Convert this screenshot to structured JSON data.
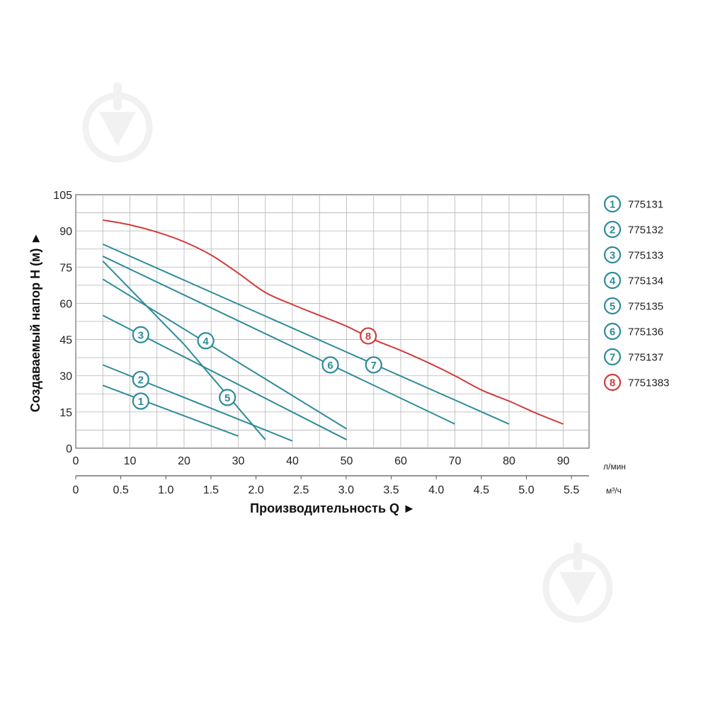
{
  "chart_data": {
    "type": "line",
    "x_unit_primary": "л/мин",
    "x_unit_secondary": "м³/ч",
    "xlabel": "Производительность Q ►",
    "ylabel": "Создаваемый напор H (м) ►",
    "ylim": [
      0,
      105
    ],
    "xlim": [
      0,
      95
    ],
    "grid": true,
    "legend_position": "right",
    "y_ticks": [
      "0",
      "15",
      "30",
      "45",
      "60",
      "75",
      "90",
      "105"
    ],
    "y_tick_values": [
      0,
      15,
      30,
      45,
      60,
      75,
      90,
      105
    ],
    "x_ticks_primary": [
      "0",
      "10",
      "20",
      "30",
      "40",
      "50",
      "60",
      "70",
      "80",
      "90"
    ],
    "x_ticks_primary_values": [
      0,
      10,
      20,
      30,
      40,
      50,
      60,
      70,
      80,
      90
    ],
    "x_ticks_secondary": [
      "0",
      "0.5",
      "1.0",
      "1.5",
      "2.0",
      "2.5",
      "3.0",
      "3.5",
      "4.0",
      "4.5",
      "5.0",
      "5.5"
    ],
    "x_ticks_secondary_values": [
      0,
      0.5,
      1.0,
      1.5,
      2.0,
      2.5,
      3.0,
      3.5,
      4.0,
      4.5,
      5.0,
      5.5
    ],
    "series": [
      {
        "id": "1",
        "name": "775131",
        "color": "#2e8b9a",
        "points": [
          [
            5,
            26
          ],
          [
            30,
            5
          ]
        ],
        "marker_at": [
          12,
          19.5
        ]
      },
      {
        "id": "2",
        "name": "775132",
        "color": "#2e8b9a",
        "points": [
          [
            5,
            34.5
          ],
          [
            40,
            3
          ]
        ],
        "marker_at": [
          12,
          28.5
        ]
      },
      {
        "id": "3",
        "name": "775133",
        "color": "#2e8b9a",
        "points": [
          [
            5,
            55
          ],
          [
            50,
            3.5
          ]
        ],
        "marker_at": [
          12,
          47
        ]
      },
      {
        "id": "4",
        "name": "775134",
        "color": "#2e8b9a",
        "points": [
          [
            5,
            70
          ],
          [
            50,
            8
          ]
        ],
        "marker_at": [
          24,
          44.5
        ]
      },
      {
        "id": "5",
        "name": "775135",
        "color": "#2e8b9a",
        "points": [
          [
            5,
            77.5
          ],
          [
            20,
            43
          ],
          [
            35,
            3.5
          ]
        ],
        "marker_at": [
          28,
          21
        ]
      },
      {
        "id": "6",
        "name": "775136",
        "color": "#2e8b9a",
        "points": [
          [
            5,
            79.5
          ],
          [
            70,
            10
          ]
        ],
        "marker_at": [
          47,
          34.5
        ]
      },
      {
        "id": "7",
        "name": "775137",
        "color": "#2e8b9a",
        "points": [
          [
            5,
            84.5
          ],
          [
            80,
            10
          ]
        ],
        "marker_at": [
          55,
          34.5
        ]
      },
      {
        "id": "8",
        "name": "7751383",
        "color": "#d13b3b",
        "points": [
          [
            5,
            94.5
          ],
          [
            10,
            92.5
          ],
          [
            15,
            89.5
          ],
          [
            20,
            85.5
          ],
          [
            25,
            80
          ],
          [
            30,
            72.5
          ],
          [
            35,
            64.5
          ],
          [
            40,
            59.5
          ],
          [
            45,
            55
          ],
          [
            50,
            50.5
          ],
          [
            55,
            45
          ],
          [
            60,
            40.5
          ],
          [
            65,
            35.5
          ],
          [
            70,
            30
          ],
          [
            75,
            24
          ],
          [
            80,
            19.5
          ],
          [
            85,
            14.5
          ],
          [
            90,
            10
          ]
        ],
        "marker_at": [
          54,
          46.5
        ]
      }
    ]
  }
}
